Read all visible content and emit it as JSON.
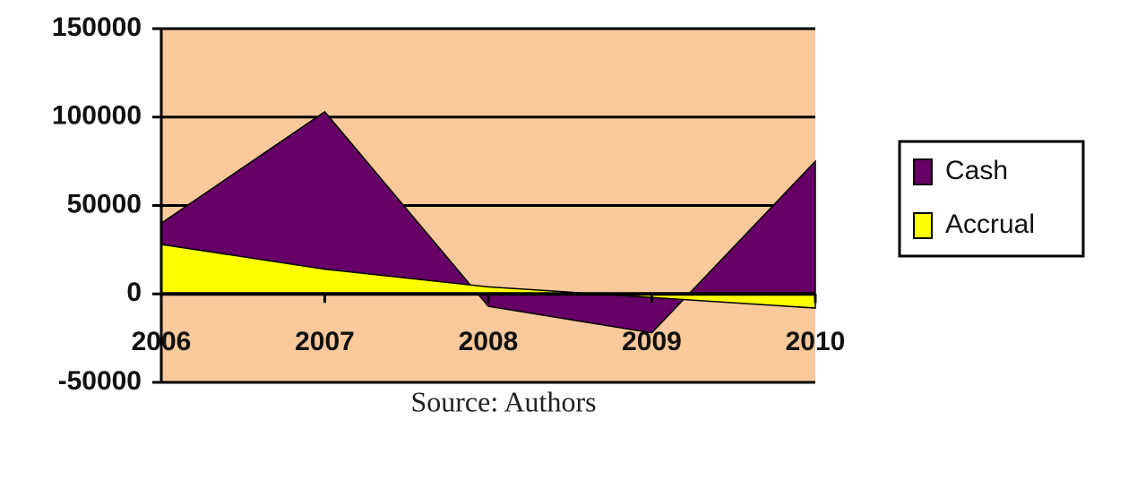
{
  "chart_data": {
    "type": "area",
    "categories": [
      "2006",
      "2007",
      "2008",
      "2009",
      "2010"
    ],
    "series": [
      {
        "name": "Cash",
        "color": "#660066",
        "values": [
          40000,
          103000,
          -7000,
          -22000,
          75000
        ]
      },
      {
        "name": "Accrual",
        "color": "#ffff00",
        "values": [
          28000,
          14000,
          4000,
          -2000,
          -8000
        ]
      }
    ],
    "ylim": [
      -50000,
      150000
    ],
    "yticks": [
      -50000,
      0,
      50000,
      100000,
      150000
    ],
    "grid": true,
    "plot_background": "#f9c89b",
    "source": "Source: Authors",
    "legend": "right"
  }
}
